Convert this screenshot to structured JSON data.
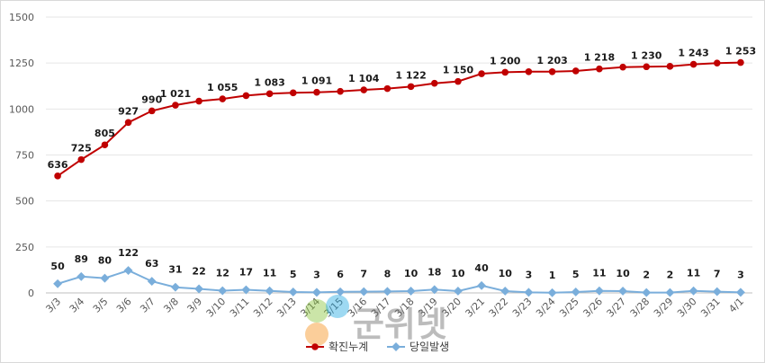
{
  "chart_data": {
    "type": "line",
    "categories": [
      "3/3",
      "3/4",
      "3/5",
      "3/6",
      "3/7",
      "3/8",
      "3/9",
      "3/10",
      "3/11",
      "3/12",
      "3/13",
      "3/14",
      "3/15",
      "3/16",
      "3/17",
      "3/18",
      "3/19",
      "3/20",
      "3/21",
      "3/22",
      "3/23",
      "3/24",
      "3/25",
      "3/26",
      "3/27",
      "3/28",
      "3/29",
      "3/30",
      "3/31",
      "4/1"
    ],
    "ylim": [
      0,
      1500
    ],
    "yticks": [
      0,
      250,
      500,
      750,
      1000,
      1250,
      1500
    ],
    "ytick_labels": [
      "0",
      "250",
      "500",
      "750",
      "1000",
      "1250",
      "1500"
    ],
    "grid": true,
    "legend_position": "bottom-center",
    "series": [
      {
        "name": "확진누계",
        "color": "#c00000",
        "values": [
          636,
          725,
          805,
          927,
          990,
          1021,
          1043,
          1055,
          1073,
          1083,
          1088,
          1091,
          1096,
          1104,
          1111,
          1122,
          1140,
          1150,
          1192,
          1200,
          1203,
          1203,
          1207,
          1218,
          1228,
          1230,
          1232,
          1243,
          1250,
          1253
        ],
        "labels": [
          "636",
          "725",
          "805",
          "927",
          "990",
          "1 021",
          "",
          "1 055",
          "",
          "1 083",
          "",
          "1 091",
          "",
          "1 104",
          "",
          "1 122",
          "",
          "1 150",
          "",
          "1 200",
          "",
          "1 203",
          "",
          "1 218",
          "",
          "1 230",
          "",
          "1 243",
          "",
          "1 253"
        ]
      },
      {
        "name": "당일발생",
        "color": "#7aaedb",
        "values": [
          50,
          89,
          80,
          122,
          63,
          31,
          22,
          12,
          17,
          11,
          5,
          3,
          6,
          7,
          8,
          10,
          18,
          10,
          40,
          10,
          3,
          1,
          5,
          11,
          10,
          2,
          2,
          11,
          7,
          3
        ],
        "labels": [
          "50",
          "89",
          "80",
          "122",
          "63",
          "31",
          "22",
          "12",
          "17",
          "11",
          "5",
          "3",
          "6",
          "7",
          "8",
          "10",
          "18",
          "10",
          "40",
          "10",
          "3",
          "1",
          "5",
          "11",
          "10",
          "2",
          "2",
          "11",
          "7",
          "3"
        ]
      }
    ]
  },
  "watermark": {
    "text": "군위넷"
  }
}
